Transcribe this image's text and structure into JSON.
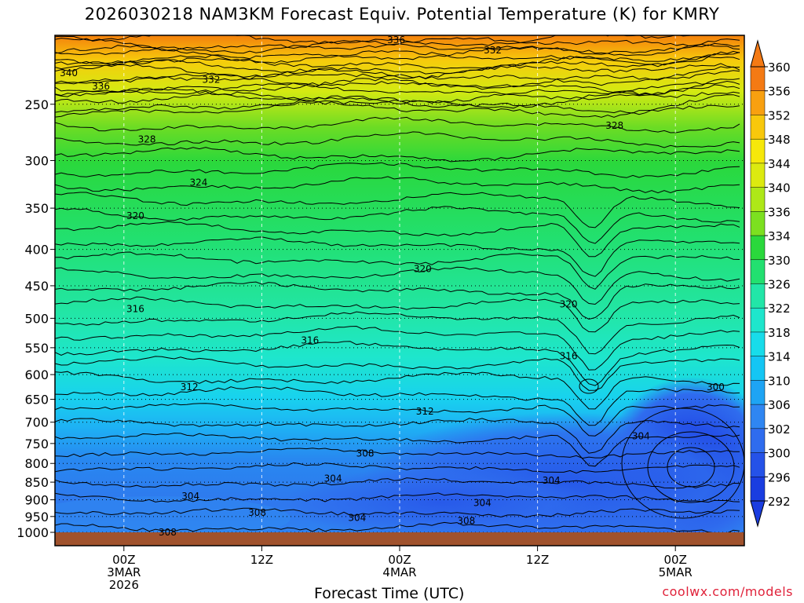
{
  "title": "2026030218 NAM3KM Forecast Equiv. Potential Temperature (K) for KMRY",
  "credit": "coolwx.com/models",
  "chart_data": {
    "type": "heatmap",
    "title": "2026030218 NAM3KM Forecast Equiv. Potential Temperature (K) for KMRY",
    "xlabel": "Forecast Time (UTC)",
    "ylabel": "",
    "x_range_hours": [
      -6,
      54
    ],
    "x_ticks": [
      {
        "hour": 0,
        "lines": [
          "00Z",
          "3MAR",
          "2026"
        ]
      },
      {
        "hour": 12,
        "lines": [
          "12Z"
        ]
      },
      {
        "hour": 24,
        "lines": [
          "00Z",
          "4MAR"
        ]
      },
      {
        "hour": 36,
        "lines": [
          "12Z"
        ]
      },
      {
        "hour": 48,
        "lines": [
          "00Z",
          "5MAR"
        ]
      }
    ],
    "y_scale": "log",
    "y_range_hpa": [
      1000,
      200
    ],
    "y_ticks": [
      250,
      300,
      350,
      400,
      450,
      500,
      550,
      600,
      650,
      700,
      750,
      800,
      850,
      900,
      950,
      1000
    ],
    "grid": true,
    "colorbar_levels": [
      292,
      296,
      300,
      302,
      306,
      310,
      314,
      318,
      322,
      326,
      330,
      334,
      336,
      340,
      344,
      348,
      352,
      356,
      360
    ],
    "colorbar_colors": [
      "#1a3de0",
      "#2552e8",
      "#2f6cee",
      "#2f86f2",
      "#1ea4f4",
      "#14c6f4",
      "#18dcea",
      "#1ee6cc",
      "#22e6a8",
      "#22e070",
      "#2ad83c",
      "#7ce020",
      "#aee818",
      "#dcea10",
      "#f6e80a",
      "#f8c80c",
      "#f8a010",
      "#f47a14"
    ],
    "contour_interval": 2,
    "contour_labels": [
      {
        "value": "336",
        "hour": 23.7,
        "hpa": 203
      },
      {
        "value": "332",
        "hour": 32.1,
        "hpa": 210
      },
      {
        "value": "340",
        "hour": -4.8,
        "hpa": 226
      },
      {
        "value": "336",
        "hour": -2.0,
        "hpa": 236
      },
      {
        "value": "332",
        "hour": 7.6,
        "hpa": 231
      },
      {
        "value": "328",
        "hour": 2.0,
        "hpa": 280
      },
      {
        "value": "328",
        "hour": 42.7,
        "hpa": 268
      },
      {
        "value": "324",
        "hour": 6.5,
        "hpa": 322
      },
      {
        "value": "320",
        "hour": 1.0,
        "hpa": 359
      },
      {
        "value": "320",
        "hour": 26.0,
        "hpa": 426
      },
      {
        "value": "320",
        "hour": 38.7,
        "hpa": 478
      },
      {
        "value": "316",
        "hour": 1.0,
        "hpa": 485
      },
      {
        "value": "316",
        "hour": 16.2,
        "hpa": 537
      },
      {
        "value": "316",
        "hour": 38.7,
        "hpa": 565
      },
      {
        "value": "312",
        "hour": 5.7,
        "hpa": 625
      },
      {
        "value": "312",
        "hour": 26.2,
        "hpa": 676
      },
      {
        "value": "308",
        "hour": 21.0,
        "hpa": 775
      },
      {
        "value": "304",
        "hour": 18.2,
        "hpa": 840
      },
      {
        "value": "304",
        "hour": 37.2,
        "hpa": 845
      },
      {
        "value": "304",
        "hour": 45.0,
        "hpa": 732
      },
      {
        "value": "300",
        "hour": 51.5,
        "hpa": 625
      },
      {
        "value": "304",
        "hour": 5.8,
        "hpa": 890
      },
      {
        "value": "304",
        "hour": 31.2,
        "hpa": 909
      },
      {
        "value": "304",
        "hour": 20.3,
        "hpa": 954
      },
      {
        "value": "308",
        "hour": 11.6,
        "hpa": 939
      },
      {
        "value": "308",
        "hour": 29.8,
        "hpa": 964
      },
      {
        "value": "308",
        "hour": 3.8,
        "hpa": 1000
      }
    ],
    "terrain_color": "#a0522d"
  }
}
